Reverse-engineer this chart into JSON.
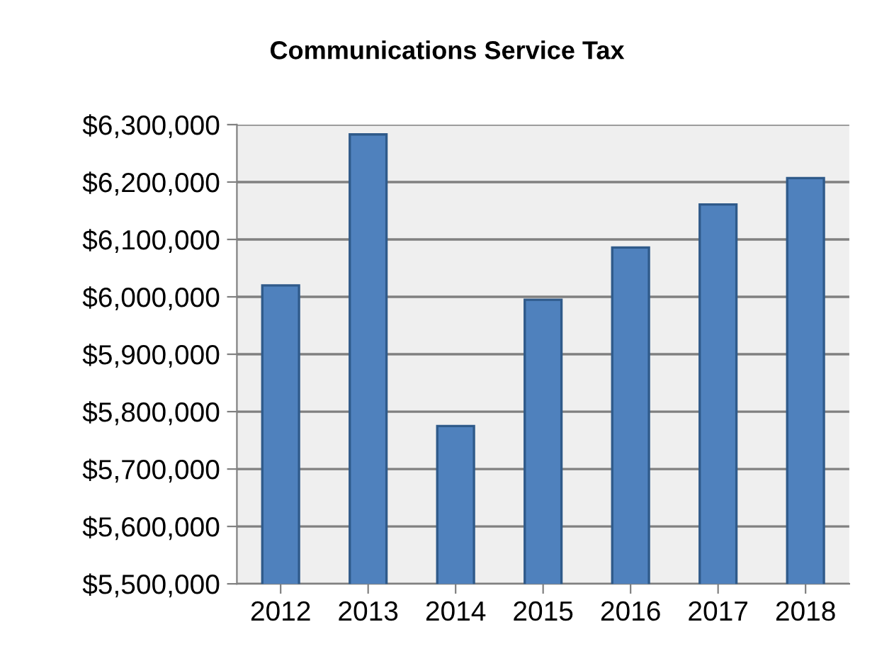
{
  "chart_data": {
    "type": "bar",
    "title": "Communications Service Tax",
    "categories": [
      "2012",
      "2013",
      "2014",
      "2015",
      "2016",
      "2017",
      "2018"
    ],
    "series": [
      {
        "color": "#4f81bd",
        "values": [
          6020000,
          6283000,
          5775000,
          5995000,
          6086000,
          6161000,
          6207000
        ]
      }
    ],
    "ylim": [
      5500000,
      6300000
    ],
    "yticks": [
      {
        "value": 5500000,
        "label": "$5,500,000"
      },
      {
        "value": 5600000,
        "label": "$5,600,000"
      },
      {
        "value": 5700000,
        "label": "$5,700,000"
      },
      {
        "value": 5800000,
        "label": "$5,800,000"
      },
      {
        "value": 5900000,
        "label": "$5,900,000"
      },
      {
        "value": 6000000,
        "label": "$6,000,000"
      },
      {
        "value": 6100000,
        "label": "$6,100,000"
      },
      {
        "value": 6200000,
        "label": "$6,200,000"
      },
      {
        "value": 6300000,
        "label": "$6,300,000"
      }
    ],
    "grid": "y",
    "legend": false
  }
}
